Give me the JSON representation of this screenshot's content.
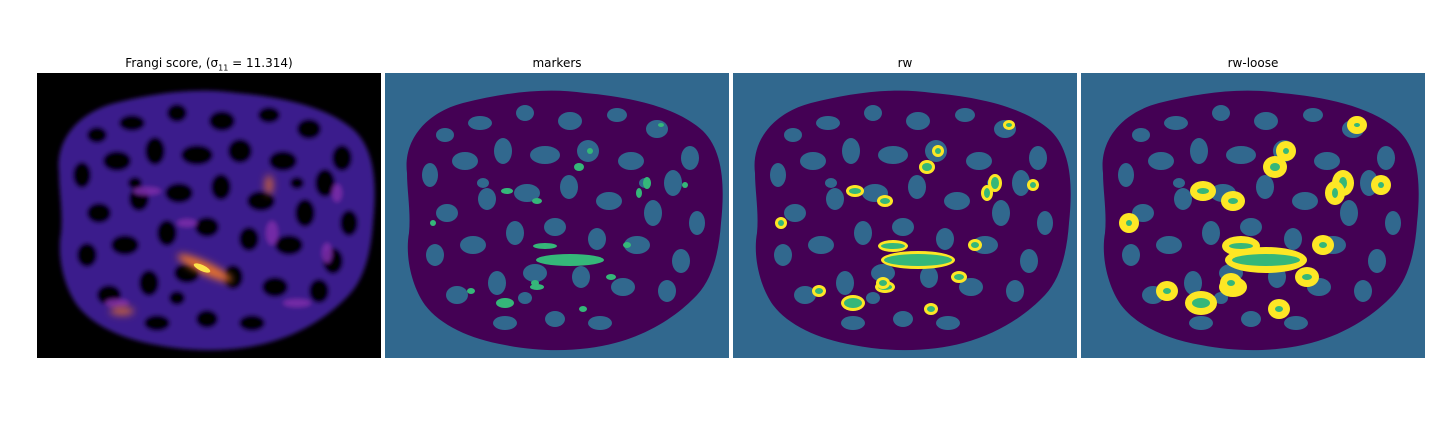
{
  "panels": [
    {
      "id": "frangi",
      "title_prefix": "Frangi score, ",
      "title_math": "(σ",
      "title_sub": "11",
      "title_suffix": " = 11.314)"
    },
    {
      "id": "markers",
      "title": "markers"
    },
    {
      "id": "rw",
      "title": "rw"
    },
    {
      "id": "rw-loose",
      "title": "rw-loose"
    }
  ],
  "colors": {
    "frangi_background": "#000000",
    "frangi_low": "#3a1a8c",
    "frangi_mid": "#7a2ba8",
    "frangi_high": "#e8722a",
    "frangi_peak": "#fde24a",
    "label_background": "#31688e",
    "label_tissue": "#440154",
    "label_marker": "#35b779",
    "label_boundary": "#fde725"
  }
}
